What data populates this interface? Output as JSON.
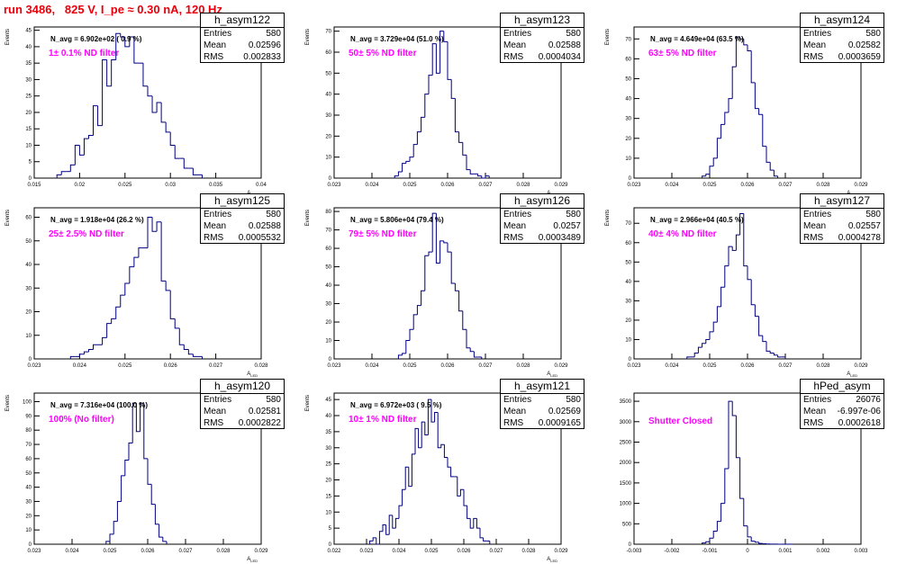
{
  "title": "run 3486,   825 V, I_pe ≈ 0.30 nA, 120 Hz",
  "colors": {
    "title": "#e8000b",
    "filter_label": "#ff00ff",
    "histogram_line": "#000080"
  },
  "chart_data": [
    {
      "type": "histogram",
      "name": "h_asym122",
      "ylabel": "Events",
      "xlabel": "A_LED",
      "xlim": [
        0.015,
        0.04
      ],
      "ylim": [
        0,
        46
      ],
      "xticks": [
        0.015,
        0.02,
        0.025,
        0.03,
        0.035,
        0.04
      ],
      "xtick_labels": [
        "0.015",
        "0.02",
        "0.025",
        "0.03",
        "0.035",
        "0.04"
      ],
      "yticks": [
        0,
        5,
        10,
        15,
        20,
        25,
        30,
        35,
        40,
        45
      ],
      "ytick_labels": [
        "0",
        "5",
        "10",
        "15",
        "20",
        "25",
        "30",
        "35",
        "40",
        "45"
      ],
      "stats": {
        "entries": "580",
        "mean": "0.02596",
        "rms": "0.002833"
      },
      "n_avg": "N_avg = 6.902e+02 ( 0.9 %)",
      "filter_label": "1± 0.1% ND filter",
      "bin_edges_start": 0.0175,
      "bin_width": 0.0005,
      "values": [
        1,
        2,
        2,
        4,
        10,
        7,
        12,
        13,
        22,
        16,
        36,
        28,
        36,
        44,
        43,
        40,
        43,
        35,
        35,
        28,
        25,
        20,
        23,
        17,
        14,
        10,
        6,
        6,
        3,
        3,
        1,
        1
      ]
    },
    {
      "type": "histogram",
      "name": "h_asym123",
      "ylabel": "Events",
      "xlabel": "A_LED",
      "xlim": [
        0.023,
        0.029
      ],
      "ylim": [
        0,
        72
      ],
      "xticks": [
        0.023,
        0.024,
        0.025,
        0.026,
        0.027,
        0.028,
        0.029
      ],
      "xtick_labels": [
        "0.023",
        "0.024",
        "0.025",
        "0.026",
        "0.027",
        "0.028",
        "0.029"
      ],
      "yticks": [
        0,
        10,
        20,
        30,
        40,
        50,
        60,
        70
      ],
      "ytick_labels": [
        "0",
        "10",
        "20",
        "30",
        "40",
        "50",
        "60",
        "70"
      ],
      "stats": {
        "entries": "580",
        "mean": "0.02588",
        "rms": "0.0004034"
      },
      "n_avg": "N_avg = 3.729e+04 (51.0 %)",
      "filter_label": "50± 5% ND filter",
      "bin_edges_start": 0.0246,
      "bin_width": 0.0001,
      "values": [
        1,
        3,
        7,
        8,
        10,
        16,
        22,
        29,
        40,
        49,
        64,
        50,
        70,
        65,
        47,
        38,
        22,
        17,
        11,
        4,
        2,
        2,
        1,
        0,
        1
      ]
    },
    {
      "type": "histogram",
      "name": "h_asym124",
      "ylabel": "Events",
      "xlabel": "A_LED",
      "xlim": [
        0.023,
        0.029
      ],
      "ylim": [
        0,
        76
      ],
      "xticks": [
        0.023,
        0.024,
        0.025,
        0.026,
        0.027,
        0.028,
        0.029
      ],
      "xtick_labels": [
        "0.023",
        "0.024",
        "0.025",
        "0.026",
        "0.027",
        "0.028",
        "0.029"
      ],
      "yticks": [
        0,
        10,
        20,
        30,
        40,
        50,
        60,
        70
      ],
      "ytick_labels": [
        "0",
        "10",
        "20",
        "30",
        "40",
        "50",
        "60",
        "70"
      ],
      "stats": {
        "entries": "580",
        "mean": "0.02582",
        "rms": "0.0003659"
      },
      "n_avg": "N_avg = 4.649e+04 (63.5 %)",
      "filter_label": "63± 5% ND filter",
      "bin_edges_start": 0.0248,
      "bin_width": 0.0001,
      "values": [
        1,
        2,
        6,
        10,
        20,
        27,
        33,
        40,
        56,
        71,
        70,
        67,
        64,
        48,
        35,
        32,
        16,
        8,
        4,
        1
      ]
    },
    {
      "type": "histogram",
      "name": "h_asym125",
      "ylabel": "Events",
      "xlabel": "A_LED",
      "xlim": [
        0.023,
        0.028
      ],
      "ylim": [
        0,
        64
      ],
      "xticks": [
        0.023,
        0.024,
        0.025,
        0.026,
        0.027,
        0.028
      ],
      "xtick_labels": [
        "0.023",
        "0.024",
        "0.025",
        "0.026",
        "0.027",
        "0.028"
      ],
      "yticks": [
        0,
        10,
        20,
        30,
        40,
        50,
        60
      ],
      "ytick_labels": [
        "0",
        "10",
        "20",
        "30",
        "40",
        "50",
        "60"
      ],
      "stats": {
        "entries": "580",
        "mean": "0.02588",
        "rms": "0.0005532"
      },
      "n_avg": "N_avg = 1.918e+04 (26.2 %)",
      "filter_label": "25± 2.5% ND filter",
      "bin_edges_start": 0.0238,
      "bin_width": 0.0001,
      "values": [
        1,
        1,
        2,
        3,
        4,
        6,
        6,
        9,
        15,
        17,
        22,
        27,
        32,
        39,
        43,
        47,
        47,
        60,
        54,
        58,
        33,
        29,
        17,
        13,
        6,
        4,
        2,
        1,
        1
      ]
    },
    {
      "type": "histogram",
      "name": "h_asym126",
      "ylabel": "Events",
      "xlabel": "A_LED",
      "xlim": [
        0.023,
        0.029
      ],
      "ylim": [
        0,
        82
      ],
      "xticks": [
        0.023,
        0.024,
        0.025,
        0.026,
        0.027,
        0.028,
        0.029
      ],
      "xtick_labels": [
        "0.023",
        "0.024",
        "0.025",
        "0.026",
        "0.027",
        "0.028",
        "0.029"
      ],
      "yticks": [
        0,
        10,
        20,
        30,
        40,
        50,
        60,
        70,
        80
      ],
      "ytick_labels": [
        "0",
        "10",
        "20",
        "30",
        "40",
        "50",
        "60",
        "70",
        "80"
      ],
      "stats": {
        "entries": "580",
        "mean": "0.0257",
        "rms": "0.0003489"
      },
      "n_avg": "N_avg = 5.806e+04 (79.4 %)",
      "filter_label": "79± 5% ND filter",
      "bin_edges_start": 0.0247,
      "bin_width": 0.0001,
      "values": [
        2,
        3,
        10,
        16,
        24,
        29,
        37,
        56,
        58,
        79,
        52,
        64,
        63,
        58,
        41,
        37,
        26,
        16,
        6,
        4,
        1,
        1
      ]
    },
    {
      "type": "histogram",
      "name": "h_asym127",
      "ylabel": "Events",
      "xlabel": "A_LED",
      "xlim": [
        0.023,
        0.029
      ],
      "ylim": [
        0,
        78
      ],
      "xticks": [
        0.023,
        0.024,
        0.025,
        0.026,
        0.027,
        0.028,
        0.029
      ],
      "xtick_labels": [
        "0.023",
        "0.024",
        "0.025",
        "0.026",
        "0.027",
        "0.028",
        "0.029"
      ],
      "yticks": [
        0,
        10,
        20,
        30,
        40,
        50,
        60,
        70
      ],
      "ytick_labels": [
        "0",
        "10",
        "20",
        "30",
        "40",
        "50",
        "60",
        "70"
      ],
      "stats": {
        "entries": "580",
        "mean": "0.02557",
        "rms": "0.0004278"
      },
      "n_avg": "N_avg = 2.966e+04 (40.5 %)",
      "filter_label": "40± 4% ND filter",
      "bin_edges_start": 0.0244,
      "bin_width": 0.0001,
      "values": [
        1,
        1,
        3,
        6,
        8,
        10,
        14,
        19,
        27,
        37,
        48,
        58,
        56,
        64,
        75,
        48,
        41,
        28,
        22,
        12,
        9,
        4,
        3,
        2,
        1,
        1
      ]
    },
    {
      "type": "histogram",
      "name": "h_asym120",
      "ylabel": "Events",
      "xlabel": "A_LED",
      "xlim": [
        0.023,
        0.029
      ],
      "ylim": [
        0,
        106
      ],
      "xticks": [
        0.023,
        0.024,
        0.025,
        0.026,
        0.027,
        0.028,
        0.029
      ],
      "xtick_labels": [
        "0.023",
        "0.024",
        "0.025",
        "0.026",
        "0.027",
        "0.028",
        "0.029"
      ],
      "yticks": [
        0,
        10,
        20,
        30,
        40,
        50,
        60,
        70,
        80,
        90,
        100
      ],
      "ytick_labels": [
        "0",
        "10",
        "20",
        "30",
        "40",
        "50",
        "60",
        "70",
        "80",
        "90",
        "100"
      ],
      "stats": {
        "entries": "580",
        "mean": "0.02581",
        "rms": "0.0002822"
      },
      "n_avg": "N_avg = 7.316e+04 (100.0 %)",
      "filter_label": "100% (No filter)",
      "bin_edges_start": 0.0249,
      "bin_width": 0.0001,
      "values": [
        2,
        7,
        16,
        30,
        48,
        59,
        71,
        99,
        79,
        99,
        60,
        42,
        28,
        14,
        5,
        2
      ]
    },
    {
      "type": "histogram",
      "name": "h_asym121",
      "ylabel": "Events",
      "xlabel": "A_LED",
      "xlim": [
        0.022,
        0.029
      ],
      "ylim": [
        0,
        47
      ],
      "xticks": [
        0.022,
        0.023,
        0.024,
        0.025,
        0.026,
        0.027,
        0.028,
        0.029
      ],
      "xtick_labels": [
        "0.022",
        "0.023",
        "0.024",
        "0.025",
        "0.026",
        "0.027",
        "0.028",
        "0.029"
      ],
      "yticks": [
        0,
        5,
        10,
        15,
        20,
        25,
        30,
        35,
        40,
        45
      ],
      "ytick_labels": [
        "0",
        "5",
        "10",
        "15",
        "20",
        "25",
        "30",
        "35",
        "40",
        "45"
      ],
      "stats": {
        "entries": "580",
        "mean": "0.02569",
        "rms": "0.0009165"
      },
      "n_avg": "N_avg = 6.972e+03 ( 9.5 %)",
      "filter_label": "10± 1% ND filter",
      "bin_edges_start": 0.0231,
      "bin_width": 0.0001,
      "values": [
        1,
        2,
        0,
        4,
        6,
        3,
        9,
        5,
        8,
        12,
        17,
        24,
        18,
        28,
        36,
        30,
        38,
        34,
        45,
        38,
        41,
        30,
        31,
        27,
        24,
        21,
        21,
        15,
        17,
        12,
        8,
        5,
        8,
        5,
        2,
        1,
        1
      ]
    },
    {
      "type": "histogram",
      "name": "hPed_asym",
      "ylabel": "",
      "xlabel": "",
      "xlim": [
        -0.003,
        0.003
      ],
      "ylim": [
        0,
        3700
      ],
      "xticks": [
        -0.003,
        -0.002,
        -0.001,
        0,
        0.001,
        0.002,
        0.003
      ],
      "xtick_labels": [
        "-0.003",
        "-0.002",
        "-0.001",
        "0",
        "0.001",
        "0.002",
        "0.003"
      ],
      "yticks": [
        0,
        500,
        1000,
        1500,
        2000,
        2500,
        3000,
        3500
      ],
      "ytick_labels": [
        "0",
        "500",
        "1000",
        "1500",
        "2000",
        "2500",
        "3000",
        "3500"
      ],
      "stats": {
        "entries": "26076",
        "mean": "-6.997e-06",
        "rms": "0.0002618"
      },
      "n_avg": "",
      "filter_label": "Shutter Closed",
      "bin_edges_start": -0.0012,
      "bin_width": 0.0001,
      "values": [
        30,
        60,
        150,
        320,
        560,
        1000,
        1850,
        3500,
        3150,
        2120,
        1120,
        450,
        180,
        75,
        50,
        20,
        10,
        5,
        3,
        2,
        1,
        1,
        1,
        1
      ]
    }
  ]
}
